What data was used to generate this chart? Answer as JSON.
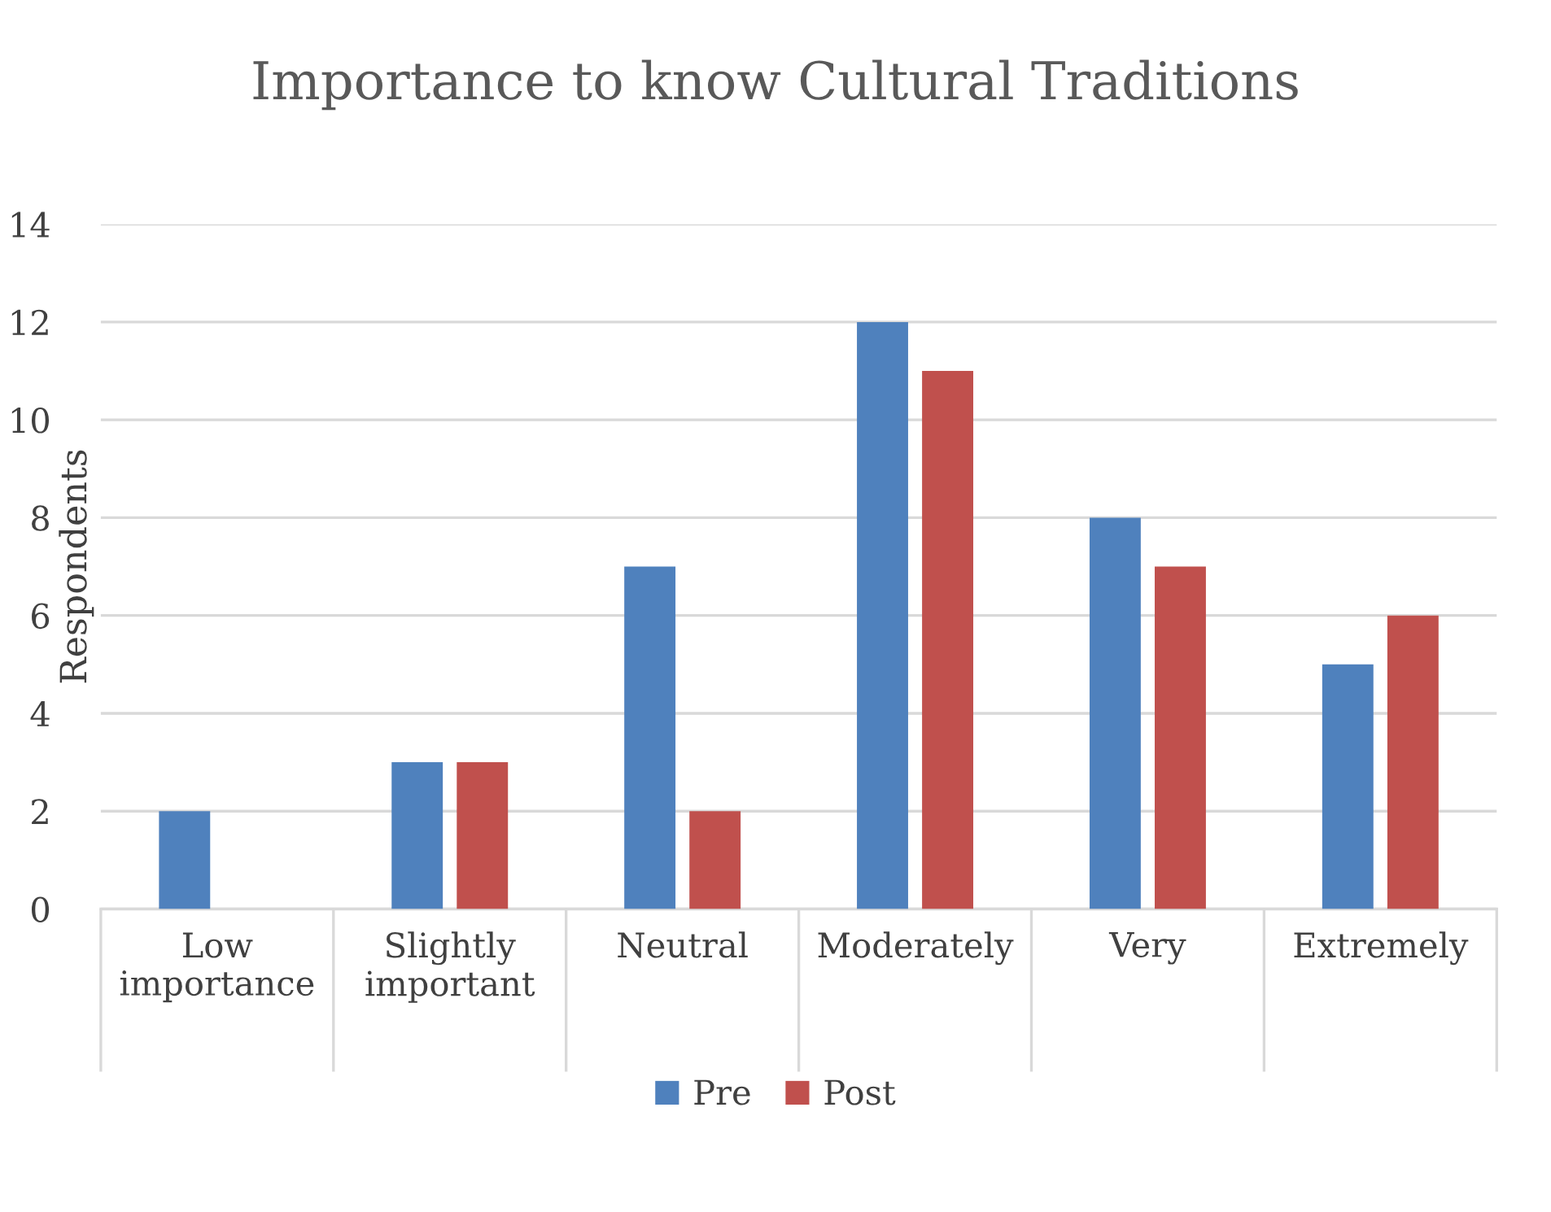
{
  "chart_data": {
    "type": "bar",
    "title": "Importance to know Cultural Traditions",
    "ylabel": "Respondents",
    "categories": [
      "Low importance",
      "Slightly important",
      "Neutral",
      "Moderately",
      "Very",
      "Extremely"
    ],
    "series": [
      {
        "name": "Pre",
        "color": "#4f81bd",
        "values": [
          2,
          3,
          7,
          12,
          8,
          5
        ]
      },
      {
        "name": "Post",
        "color": "#c0504d",
        "values": [
          0,
          3,
          2,
          11,
          7,
          6
        ]
      }
    ],
    "ylim": [
      0,
      14
    ],
    "yticks": [
      0,
      2,
      4,
      6,
      8,
      10,
      12,
      14
    ],
    "grid": "y",
    "legend": "bottom"
  }
}
